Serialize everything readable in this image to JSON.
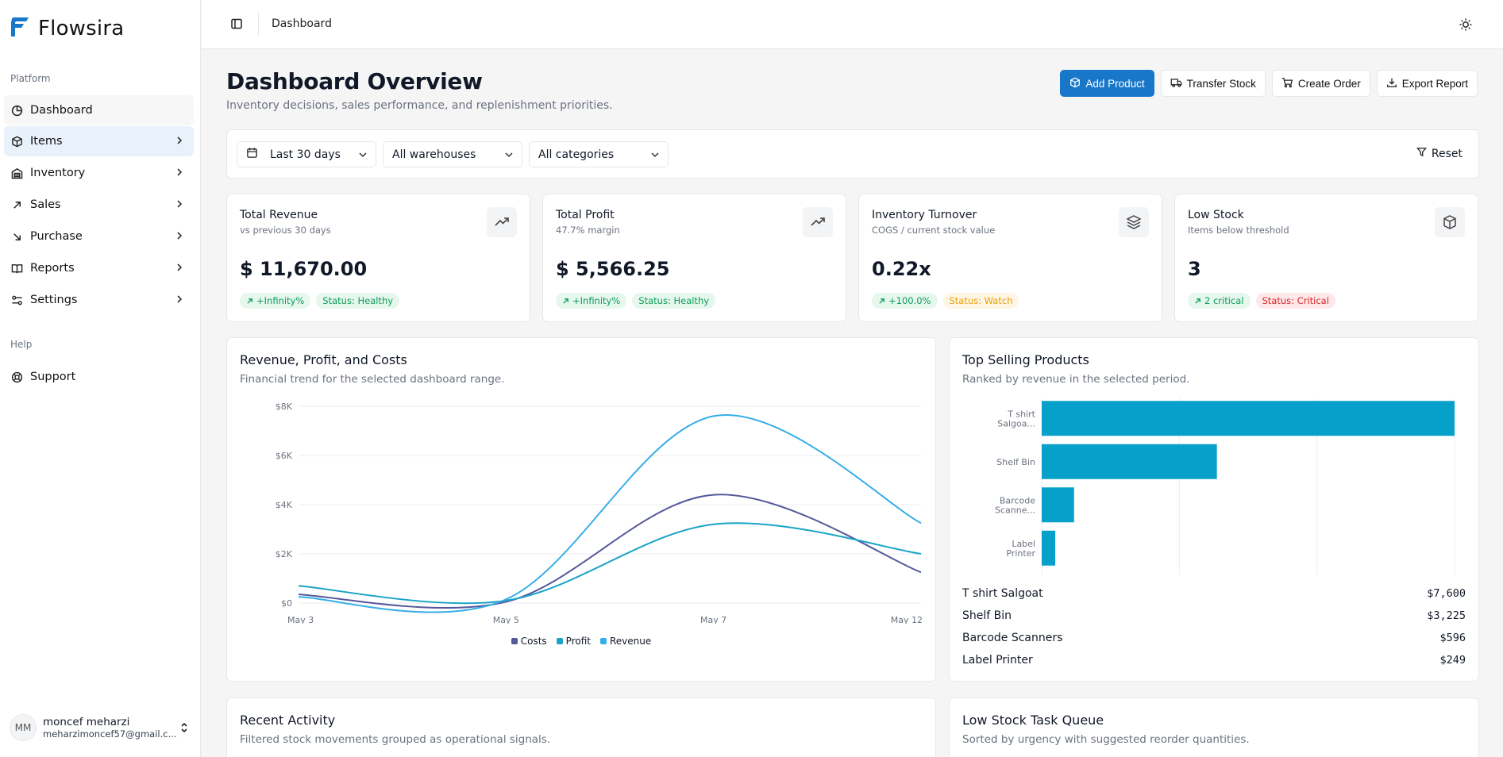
{
  "app": {
    "name": "Flowsira"
  },
  "sidebar": {
    "platform_label": "Platform",
    "help_label": "Help",
    "items": [
      {
        "label": "Dashboard",
        "icon": "dashboard-icon"
      },
      {
        "label": "Items",
        "icon": "box-icon"
      },
      {
        "label": "Inventory",
        "icon": "warehouse-icon"
      },
      {
        "label": "Sales",
        "icon": "arrow-up-right-icon"
      },
      {
        "label": "Purchase",
        "icon": "arrow-down-right-icon"
      },
      {
        "label": "Reports",
        "icon": "book-icon"
      },
      {
        "label": "Settings",
        "icon": "sliders-icon"
      }
    ],
    "support": {
      "label": "Support",
      "icon": "lifebuoy-icon"
    },
    "user": {
      "initials": "MM",
      "name": "moncef meharzi",
      "email": "meharzimoncef57@gmail.c..."
    }
  },
  "topbar": {
    "breadcrumb": "Dashboard"
  },
  "header": {
    "title": "Dashboard Overview",
    "subtitle": "Inventory decisions, sales performance, and replenishment priorities.",
    "actions": {
      "add_product": "Add Product",
      "transfer_stock": "Transfer Stock",
      "create_order": "Create Order",
      "export_report": "Export Report"
    }
  },
  "filters": {
    "date_range": "Last 30 days",
    "warehouse": "All warehouses",
    "category": "All categories",
    "reset": "Reset"
  },
  "stats": [
    {
      "title": "Total Revenue",
      "sub": "vs previous 30 days",
      "value": "$ 11,670.00",
      "change": "+Infinity%",
      "status": "Status: Healthy",
      "status_tone": "green",
      "icon": "trending-up-icon"
    },
    {
      "title": "Total Profit",
      "sub": "47.7% margin",
      "value": "$ 5,566.25",
      "change": "+Infinity%",
      "status": "Status: Healthy",
      "status_tone": "green",
      "icon": "trending-up-icon"
    },
    {
      "title": "Inventory Turnover",
      "sub": "COGS / current stock value",
      "value": "0.22x",
      "change": "+100.0%",
      "status": "Status: Watch",
      "status_tone": "amber",
      "icon": "layers-icon"
    },
    {
      "title": "Low Stock",
      "sub": "Items below threshold",
      "value": "3",
      "change": "2 critical",
      "status": "Status: Critical",
      "status_tone": "red",
      "icon": "package-icon"
    }
  ],
  "revenue_panel": {
    "title": "Revenue, Profit, and Costs",
    "subtitle": "Financial trend for the selected dashboard range."
  },
  "top_panel": {
    "title": "Top Selling Products",
    "subtitle": "Ranked by revenue in the selected period.",
    "bar_labels": [
      [
        "T shirt",
        "Salgoa..."
      ],
      [
        "Shelf Bin"
      ],
      [
        "Barcode",
        "Scanne..."
      ],
      [
        "Label",
        "Printer"
      ]
    ],
    "products": [
      {
        "name": "T shirt Salgoat",
        "value": "$7,600"
      },
      {
        "name": "Shelf Bin",
        "value": "$3,225"
      },
      {
        "name": "Barcode Scanners",
        "value": "$596"
      },
      {
        "name": "Label Printer",
        "value": "$249"
      }
    ]
  },
  "activity_panel": {
    "title": "Recent Activity",
    "subtitle": "Filtered stock movements grouped as operational signals."
  },
  "lowstock_panel": {
    "title": "Low Stock Task Queue",
    "subtitle": "Sorted by urgency with suggested reorder quantities."
  },
  "colors": {
    "primary": "#1877c9",
    "costs": "#55589a",
    "profit": "#1aa3c7",
    "revenue": "#35aee6",
    "bar": "#06a0cb"
  },
  "chart_data": [
    {
      "type": "line",
      "x": [
        "May 3",
        "May 5",
        "May 7",
        "May 12"
      ],
      "ylim": [
        0,
        8000
      ],
      "y_ticks": [
        "$0",
        "$2K",
        "$4K",
        "$6K",
        "$8K"
      ],
      "series": [
        {
          "name": "Costs",
          "values": [
            350,
            50,
            4400,
            1250
          ]
        },
        {
          "name": "Profit",
          "values": [
            700,
            100,
            3200,
            2000
          ]
        },
        {
          "name": "Revenue",
          "values": [
            250,
            150,
            7600,
            3250
          ]
        }
      ],
      "legend": "bottom"
    },
    {
      "type": "bar",
      "orientation": "horizontal",
      "categories": [
        "T shirt Salgoat",
        "Shelf Bin",
        "Barcode Scanners",
        "Label Printer"
      ],
      "values": [
        7600,
        3225,
        596,
        249
      ],
      "xlim": [
        0,
        7600
      ]
    }
  ]
}
